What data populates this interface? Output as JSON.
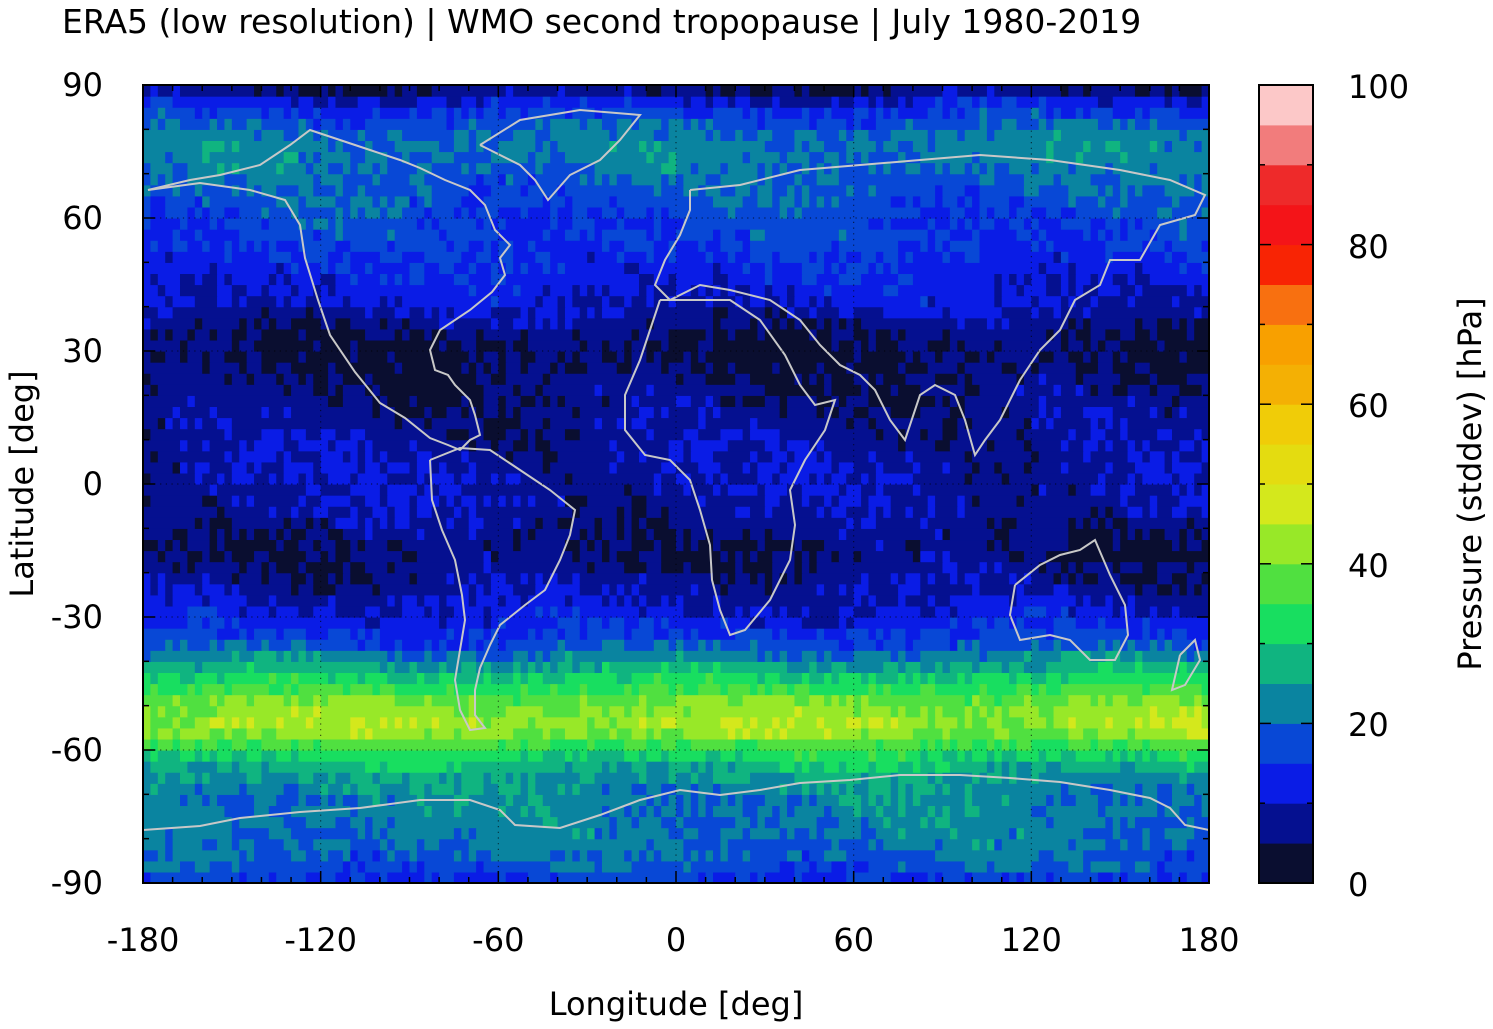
{
  "chart_data": {
    "type": "heatmap",
    "title": "ERA5 (low resolution) | WMO second tropopause | July 1980-2019",
    "xlabel": "Longitude [deg]",
    "ylabel": "Latitude [deg]",
    "xlim": [
      -180,
      180
    ],
    "ylim": [
      -90,
      90
    ],
    "x_ticks": [
      "-180",
      "-120",
      "-60",
      "0",
      "60",
      "120",
      "180"
    ],
    "y_ticks": [
      "90",
      "60",
      "30",
      "0",
      "-30",
      "-60",
      "-90"
    ],
    "grid": true,
    "colorbar": {
      "label": "Pressure (stddev) [hPa]",
      "range": [
        0,
        100
      ],
      "ticks": [
        "100",
        "80",
        "60",
        "40",
        "20",
        "0"
      ],
      "levels": 20,
      "colors": [
        "#0a0e30",
        "#051090",
        "#0a1ce6",
        "#0848d6",
        "#0a84a0",
        "#10b480",
        "#18de60",
        "#50e040",
        "#98e828",
        "#d4e81c",
        "#e4dc10",
        "#f0cc08",
        "#f4b004",
        "#f8a000",
        "#f87010",
        "#f82404",
        "#f41418",
        "#ee2a2a",
        "#f27c7c",
        "#fcc8c8"
      ]
    },
    "zonal_profile": {
      "lat": [
        -90,
        -85,
        -80,
        -75,
        -70,
        -65,
        -60,
        -55,
        -50,
        -45,
        -40,
        -35,
        -30,
        -25,
        -20,
        -15,
        -10,
        -5,
        0,
        5,
        10,
        15,
        20,
        25,
        30,
        35,
        40,
        45,
        50,
        55,
        60,
        65,
        70,
        75,
        80,
        85,
        90
      ],
      "value": [
        14,
        19,
        21,
        22,
        22,
        26,
        33,
        44,
        41,
        33,
        24,
        16,
        12,
        9,
        7,
        5,
        7,
        9,
        9,
        9,
        8,
        7,
        6,
        5,
        4,
        6,
        10,
        12,
        14,
        16,
        16,
        18,
        20,
        22,
        20,
        14,
        4
      ]
    },
    "coastline_color": "#c8c8c8"
  }
}
